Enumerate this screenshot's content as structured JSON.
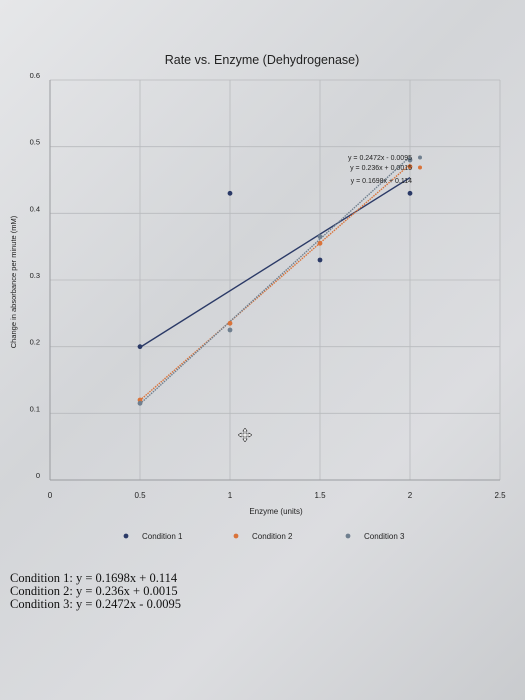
{
  "chart_data": {
    "type": "scatter",
    "title": "Rate vs. Enzyme (Dehydrogenase)",
    "xlabel": "Enzyme (units)",
    "ylabel": "Change in absorbance per minute (mM)",
    "xlim": [
      0,
      2.5
    ],
    "ylim": [
      0,
      0.6
    ],
    "x_ticks": [
      "0",
      "0.5",
      "1",
      "1.5",
      "2",
      "2.5"
    ],
    "y_ticks": [
      "0",
      "0.1",
      "0.2",
      "0.3",
      "0.4",
      "0.5",
      "0.6"
    ],
    "grid": true,
    "legend_position": "bottom",
    "series": [
      {
        "name": "Condition 1",
        "color": "#2b3a67",
        "x": [
          0.5,
          1,
          1.5,
          2
        ],
        "y": [
          0.2,
          0.43,
          0.33,
          0.43
        ],
        "trendline": {
          "slope": 0.1698,
          "intercept": 0.114,
          "x_range": [
            0.5,
            2
          ]
        },
        "equation_label": "y = 0.1698x + 0.114"
      },
      {
        "name": "Condition 2",
        "color": "#d9733a",
        "x": [
          0.5,
          1,
          1.5,
          2
        ],
        "y": [
          0.12,
          0.235,
          0.355,
          0.47
        ],
        "trendline": {
          "slope": 0.236,
          "intercept": 0.0015,
          "x_range": [
            0.5,
            2
          ]
        },
        "equation_label": "y = 0.236x + 0.0015"
      },
      {
        "name": "Condition 3",
        "color": "#6f7f8f",
        "x": [
          0.5,
          1,
          1.5,
          2
        ],
        "y": [
          0.115,
          0.225,
          0.365,
          0.48
        ],
        "trendline": {
          "slope": 0.2472,
          "intercept": -0.0095,
          "x_range": [
            0.5,
            2
          ]
        },
        "equation_label": "y = 0.2472x - 0.0095"
      }
    ]
  },
  "notes": {
    "lines": [
      "Condition 1: y = 0.1698x + 0.114",
      "Condition 2: y = 0.236x + 0.0015",
      "Condition 3: y = 0.2472x - 0.0095"
    ]
  },
  "icons": {
    "cursor": "move-cursor-icon"
  }
}
